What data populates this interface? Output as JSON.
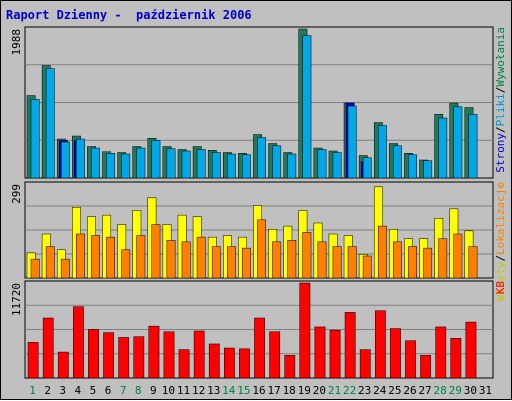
{
  "title": "Raport Dzienny -  październik 2006",
  "colors": {
    "background": "#c0c0c0",
    "plot": "#c0c0c0",
    "grid": "#808080",
    "title": "#0000cc",
    "weekday_label": "#000000",
    "weekend_label": "#008040",
    "visits": "#1f7a5c",
    "pages": "#0000cc",
    "files": "#00a8e8",
    "sites": "#ff8000",
    "visitors": "#ffff00",
    "kb": "#ff0000"
  },
  "legend": {
    "top": [
      {
        "label": "Wywołania",
        "color": "#008040"
      },
      {
        "label": "/",
        "color": "#000000"
      },
      {
        "label": "Pliki",
        "color": "#0090d0"
      },
      {
        "label": "/",
        "color": "#000000"
      },
      {
        "label": "Strony",
        "color": "#0000cc"
      }
    ],
    "middle": [
      {
        "label": "Lokalizacje",
        "color": "#ff8000"
      },
      {
        "label": "/",
        "color": "#000000"
      },
      {
        "label": "Wizyty",
        "color": "#c8c800"
      }
    ],
    "bottom": [
      {
        "label": "KB",
        "color": "#ff0000"
      }
    ]
  },
  "chart_data": {
    "type": "bar",
    "x": [
      1,
      2,
      3,
      4,
      5,
      6,
      7,
      8,
      9,
      10,
      11,
      12,
      13,
      14,
      15,
      16,
      17,
      18,
      19,
      20,
      21,
      22,
      23,
      24,
      25,
      26,
      27,
      28,
      29,
      30,
      31
    ],
    "weekend_days": [
      1,
      7,
      8,
      14,
      15,
      21,
      22,
      28,
      29
    ],
    "panels": [
      {
        "id": "hits",
        "ymax_label": "1988",
        "ylim": [
          0,
          1988
        ],
        "series": [
          {
            "name": "Wywołania",
            "values": [
              1100,
              1500,
              520,
              560,
              420,
              350,
              340,
              420,
              530,
              420,
              380,
              420,
              370,
              340,
              330,
              580,
              460,
              340,
              1988,
              400,
              360,
              1000,
              300,
              740,
              460,
              330,
              240,
              850,
              1000,
              940,
              0
            ]
          },
          {
            "name": "Strony",
            "values": [
              0,
              0,
              500,
              500,
              0,
              0,
              0,
              0,
              0,
              0,
              0,
              0,
              0,
              0,
              0,
              0,
              0,
              0,
              0,
              0,
              0,
              1000,
              220,
              0,
              0,
              0,
              0,
              0,
              0,
              0,
              0
            ]
          },
          {
            "name": "Pliki",
            "values": [
              1050,
              1460,
              480,
              520,
              400,
              330,
              320,
              400,
              500,
              390,
              360,
              380,
              340,
              320,
              310,
              540,
              430,
              320,
              1900,
              380,
              340,
              960,
              270,
              700,
              430,
              310,
              230,
              800,
              950,
              850,
              0
            ]
          }
        ]
      },
      {
        "id": "visits",
        "ymax_label": "299",
        "ylim": [
          0,
          299
        ],
        "series": [
          {
            "name": "Wizyty",
            "values": [
              80,
              140,
              90,
              225,
              195,
              200,
              170,
              215,
              255,
              170,
              200,
              195,
              130,
              135,
              130,
              230,
              155,
              165,
              215,
              175,
              140,
              135,
              75,
              290,
              155,
              125,
              125,
              190,
              220,
              150,
              0
            ]
          },
          {
            "name": "Lokalizacje",
            "values": [
              60,
              100,
              60,
              140,
              135,
              130,
              90,
              135,
              170,
              120,
              115,
              130,
              100,
              100,
              95,
              185,
              115,
              120,
              145,
              115,
              100,
              100,
              70,
              165,
              115,
              100,
              95,
              125,
              140,
              100,
              0
            ]
          }
        ]
      },
      {
        "id": "kb",
        "ymax_label": "11720",
        "ylim": [
          0,
          11720
        ],
        "series": [
          {
            "name": "KB",
            "values": [
              4400,
              7400,
              3200,
              8800,
              6000,
              5600,
              5000,
              5100,
              6400,
              5700,
              3500,
              5800,
              4200,
              3700,
              3600,
              7400,
              5700,
              2800,
              11720,
              6300,
              5900,
              8100,
              3500,
              8300,
              6100,
              4600,
              2800,
              6300,
              4900,
              6900,
              0
            ]
          }
        ]
      }
    ]
  }
}
